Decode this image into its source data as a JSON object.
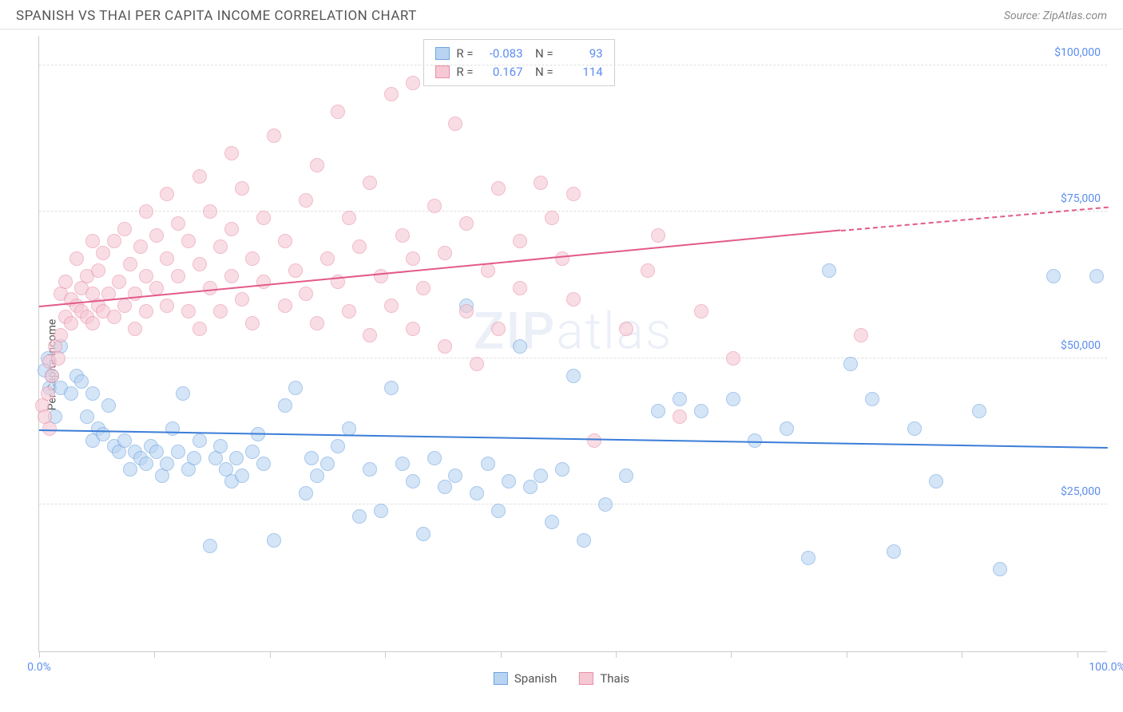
{
  "header": {
    "title": "SPANISH VS THAI PER CAPITA INCOME CORRELATION CHART",
    "source_prefix": "Source: ",
    "source_name": "ZipAtlas.com"
  },
  "chart": {
    "type": "scatter",
    "ylabel": "Per Capita Income",
    "watermark": "ZIPatlas",
    "background_color": "#ffffff",
    "grid_color": "#e0e0e0",
    "xlim": [
      0,
      100
    ],
    "ylim": [
      0,
      105000
    ],
    "xtick_positions": [
      0,
      10.8,
      21.6,
      32.4,
      43.2,
      54,
      64.8,
      75.6,
      86.4,
      97.2
    ],
    "xtick_labels": {
      "0": "0.0%",
      "100": "100.0%"
    },
    "yticks": [
      {
        "v": 25000,
        "label": "$25,000"
      },
      {
        "v": 50000,
        "label": "$50,000"
      },
      {
        "v": 75000,
        "label": "$75,000"
      },
      {
        "v": 100000,
        "label": "$100,000"
      }
    ],
    "point_radius": 9,
    "point_opacity": 0.6,
    "series": [
      {
        "name": "Spanish",
        "fill": "#b9d4f3",
        "stroke": "#6fa3de",
        "line_color": "#3b7dd8",
        "R": "-0.083",
        "N": "93",
        "trend": {
          "x1": 0,
          "y1": 38000,
          "x2": 100,
          "y2": 35000,
          "dash_from_x": 100
        },
        "points": [
          [
            0.5,
            48000
          ],
          [
            0.8,
            50000
          ],
          [
            1,
            45000
          ],
          [
            1.2,
            47000
          ],
          [
            1.5,
            40000
          ],
          [
            2,
            52000
          ],
          [
            2,
            45000
          ],
          [
            3,
            44000
          ],
          [
            3.5,
            47000
          ],
          [
            4,
            46000
          ],
          [
            4.5,
            40000
          ],
          [
            5,
            44000
          ],
          [
            5,
            36000
          ],
          [
            5.5,
            38000
          ],
          [
            6,
            37000
          ],
          [
            6.5,
            42000
          ],
          [
            7,
            35000
          ],
          [
            7.5,
            34000
          ],
          [
            8,
            36000
          ],
          [
            8.5,
            31000
          ],
          [
            9,
            34000
          ],
          [
            9.5,
            33000
          ],
          [
            10,
            32000
          ],
          [
            10.5,
            35000
          ],
          [
            11,
            34000
          ],
          [
            11.5,
            30000
          ],
          [
            12,
            32000
          ],
          [
            12.5,
            38000
          ],
          [
            13,
            34000
          ],
          [
            13.5,
            44000
          ],
          [
            14,
            31000
          ],
          [
            14.5,
            33000
          ],
          [
            15,
            36000
          ],
          [
            16,
            18000
          ],
          [
            16.5,
            33000
          ],
          [
            17,
            35000
          ],
          [
            17.5,
            31000
          ],
          [
            18,
            29000
          ],
          [
            18.5,
            33000
          ],
          [
            19,
            30000
          ],
          [
            20,
            34000
          ],
          [
            20.5,
            37000
          ],
          [
            21,
            32000
          ],
          [
            22,
            19000
          ],
          [
            23,
            42000
          ],
          [
            24,
            45000
          ],
          [
            25,
            27000
          ],
          [
            25.5,
            33000
          ],
          [
            26,
            30000
          ],
          [
            27,
            32000
          ],
          [
            28,
            35000
          ],
          [
            29,
            38000
          ],
          [
            30,
            23000
          ],
          [
            31,
            31000
          ],
          [
            32,
            24000
          ],
          [
            33,
            45000
          ],
          [
            34,
            32000
          ],
          [
            35,
            29000
          ],
          [
            36,
            20000
          ],
          [
            37,
            33000
          ],
          [
            38,
            28000
          ],
          [
            39,
            30000
          ],
          [
            40,
            59000
          ],
          [
            41,
            27000
          ],
          [
            42,
            32000
          ],
          [
            43,
            24000
          ],
          [
            44,
            29000
          ],
          [
            45,
            52000
          ],
          [
            46,
            28000
          ],
          [
            47,
            30000
          ],
          [
            48,
            22000
          ],
          [
            49,
            31000
          ],
          [
            50,
            47000
          ],
          [
            51,
            19000
          ],
          [
            53,
            25000
          ],
          [
            55,
            30000
          ],
          [
            58,
            41000
          ],
          [
            60,
            43000
          ],
          [
            62,
            41000
          ],
          [
            65,
            43000
          ],
          [
            67,
            36000
          ],
          [
            70,
            38000
          ],
          [
            72,
            16000
          ],
          [
            74,
            65000
          ],
          [
            76,
            49000
          ],
          [
            78,
            43000
          ],
          [
            80,
            17000
          ],
          [
            82,
            38000
          ],
          [
            84,
            29000
          ],
          [
            88,
            41000
          ],
          [
            90,
            14000
          ],
          [
            95,
            64000
          ],
          [
            99,
            64000
          ]
        ]
      },
      {
        "name": "Thais",
        "fill": "#f6c8d4",
        "stroke": "#e88fa8",
        "line_color": "#e35a8a",
        "R": "0.167",
        "N": "114",
        "trend": {
          "x1": 0,
          "y1": 59000,
          "x2": 75,
          "y2": 72000,
          "dash_from_x": 75,
          "dash_to_x": 100,
          "dash_to_y": 76000
        },
        "points": [
          [
            0.3,
            42000
          ],
          [
            0.5,
            40000
          ],
          [
            0.8,
            44000
          ],
          [
            1,
            38000
          ],
          [
            1,
            49500
          ],
          [
            1.2,
            47000
          ],
          [
            1.5,
            52000
          ],
          [
            1.8,
            50000
          ],
          [
            2,
            54000
          ],
          [
            2,
            61000
          ],
          [
            2.5,
            57000
          ],
          [
            2.5,
            63000
          ],
          [
            3,
            56000
          ],
          [
            3,
            60000
          ],
          [
            3.5,
            59000
          ],
          [
            3.5,
            67000
          ],
          [
            4,
            58000
          ],
          [
            4,
            62000
          ],
          [
            4.5,
            57000
          ],
          [
            4.5,
            64000
          ],
          [
            5,
            56000
          ],
          [
            5,
            61000
          ],
          [
            5,
            70000
          ],
          [
            5.5,
            59000
          ],
          [
            5.5,
            65000
          ],
          [
            6,
            58000
          ],
          [
            6,
            68000
          ],
          [
            6.5,
            61000
          ],
          [
            7,
            57000
          ],
          [
            7,
            70000
          ],
          [
            7.5,
            63000
          ],
          [
            8,
            59000
          ],
          [
            8,
            72000
          ],
          [
            8.5,
            66000
          ],
          [
            9,
            61000
          ],
          [
            9,
            55000
          ],
          [
            9.5,
            69000
          ],
          [
            10,
            58000
          ],
          [
            10,
            64000
          ],
          [
            10,
            75000
          ],
          [
            11,
            62000
          ],
          [
            11,
            71000
          ],
          [
            12,
            59000
          ],
          [
            12,
            67000
          ],
          [
            12,
            78000
          ],
          [
            13,
            64000
          ],
          [
            13,
            73000
          ],
          [
            14,
            58000
          ],
          [
            14,
            70000
          ],
          [
            15,
            55000
          ],
          [
            15,
            66000
          ],
          [
            15,
            81000
          ],
          [
            16,
            62000
          ],
          [
            16,
            75000
          ],
          [
            17,
            58000
          ],
          [
            17,
            69000
          ],
          [
            18,
            64000
          ],
          [
            18,
            72000
          ],
          [
            18,
            85000
          ],
          [
            19,
            60000
          ],
          [
            19,
            79000
          ],
          [
            20,
            56000
          ],
          [
            20,
            67000
          ],
          [
            21,
            63000
          ],
          [
            21,
            74000
          ],
          [
            22,
            88000
          ],
          [
            23,
            59000
          ],
          [
            23,
            70000
          ],
          [
            24,
            65000
          ],
          [
            25,
            61000
          ],
          [
            25,
            77000
          ],
          [
            26,
            56000
          ],
          [
            26,
            83000
          ],
          [
            27,
            67000
          ],
          [
            28,
            63000
          ],
          [
            28,
            92000
          ],
          [
            29,
            58000
          ],
          [
            29,
            74000
          ],
          [
            30,
            69000
          ],
          [
            31,
            54000
          ],
          [
            31,
            80000
          ],
          [
            32,
            64000
          ],
          [
            33,
            59000
          ],
          [
            33,
            95000
          ],
          [
            34,
            71000
          ],
          [
            35,
            55000
          ],
          [
            35,
            67000
          ],
          [
            35,
            97000
          ],
          [
            36,
            62000
          ],
          [
            37,
            76000
          ],
          [
            38,
            52000
          ],
          [
            38,
            68000
          ],
          [
            39,
            90000
          ],
          [
            40,
            58000
          ],
          [
            40,
            73000
          ],
          [
            41,
            49000
          ],
          [
            42,
            65000
          ],
          [
            43,
            79000
          ],
          [
            43,
            55000
          ],
          [
            45,
            70000
          ],
          [
            45,
            62000
          ],
          [
            47,
            80000
          ],
          [
            48,
            74000
          ],
          [
            49,
            67000
          ],
          [
            50,
            78000
          ],
          [
            50,
            60000
          ],
          [
            52,
            36000
          ],
          [
            55,
            55000
          ],
          [
            57,
            65000
          ],
          [
            58,
            71000
          ],
          [
            60,
            40000
          ],
          [
            62,
            58000
          ],
          [
            65,
            50000
          ],
          [
            77,
            54000
          ]
        ]
      }
    ]
  }
}
